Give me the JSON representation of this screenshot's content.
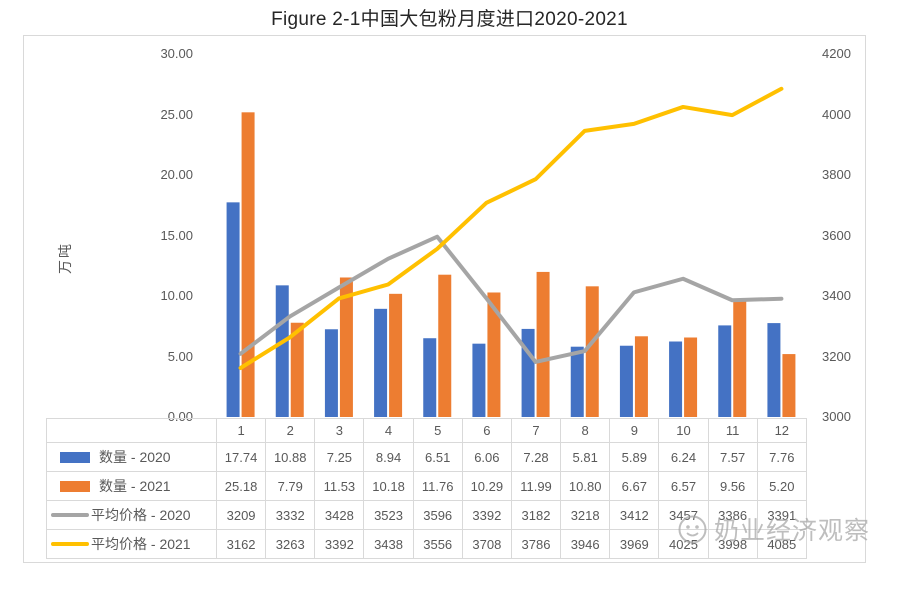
{
  "title": "Figure 2-1中国大包粉月度进口2020-2021",
  "watermark": {
    "text": "奶业经济观察",
    "icon": "smiley-face-icon"
  },
  "colors": {
    "bar_2020": "#4472C4",
    "bar_2021": "#ED7D31",
    "line_2020": "#A5A5A5",
    "line_2021": "#FFC000",
    "axis_text": "#595959",
    "table_border": "#d9d9d9"
  },
  "chart_data": {
    "type": "bar",
    "combo": "grouped bars (left axis) + lines (right axis), legend shown as data table below plot",
    "title": "Figure 2-1中国大包粉月度进口2020-2021",
    "categories": [
      "1",
      "2",
      "3",
      "4",
      "5",
      "6",
      "7",
      "8",
      "9",
      "10",
      "11",
      "12"
    ],
    "series": [
      {
        "name": "数量 - 2020",
        "kind": "bar",
        "axis": "left",
        "color": "#4472C4",
        "values": [
          17.74,
          10.88,
          7.25,
          8.94,
          6.51,
          6.06,
          7.28,
          5.81,
          5.89,
          6.24,
          7.57,
          7.76
        ]
      },
      {
        "name": "数量 - 2021",
        "kind": "bar",
        "axis": "left",
        "color": "#ED7D31",
        "values": [
          25.18,
          7.79,
          11.53,
          10.18,
          11.76,
          10.29,
          11.99,
          10.8,
          6.67,
          6.57,
          9.56,
          5.2
        ]
      },
      {
        "name": "平均价格 - 2020",
        "kind": "line",
        "axis": "right",
        "color": "#A5A5A5",
        "values": [
          3209,
          3332,
          3428,
          3523,
          3596,
          3392,
          3182,
          3218,
          3412,
          3457,
          3386,
          3391
        ]
      },
      {
        "name": "平均价格 - 2021",
        "kind": "line",
        "axis": "right",
        "color": "#FFC000",
        "values": [
          3162,
          3263,
          3392,
          3438,
          3556,
          3708,
          3786,
          3946,
          3969,
          4025,
          3998,
          4085
        ]
      }
    ],
    "ylabel_left": "万吨",
    "left_axis": {
      "min": 0,
      "max": 30,
      "step": 5,
      "tick_labels": [
        "30.00",
        "25.00",
        "20.00",
        "15.00",
        "10.00",
        "5.00",
        "0.00"
      ]
    },
    "right_axis": {
      "min": 3000,
      "max": 4200,
      "step": 200,
      "tick_labels": [
        "4200",
        "4000",
        "3800",
        "3600",
        "3400",
        "3200",
        "3000"
      ]
    },
    "grid": false,
    "legend_position": "left column of data table"
  }
}
